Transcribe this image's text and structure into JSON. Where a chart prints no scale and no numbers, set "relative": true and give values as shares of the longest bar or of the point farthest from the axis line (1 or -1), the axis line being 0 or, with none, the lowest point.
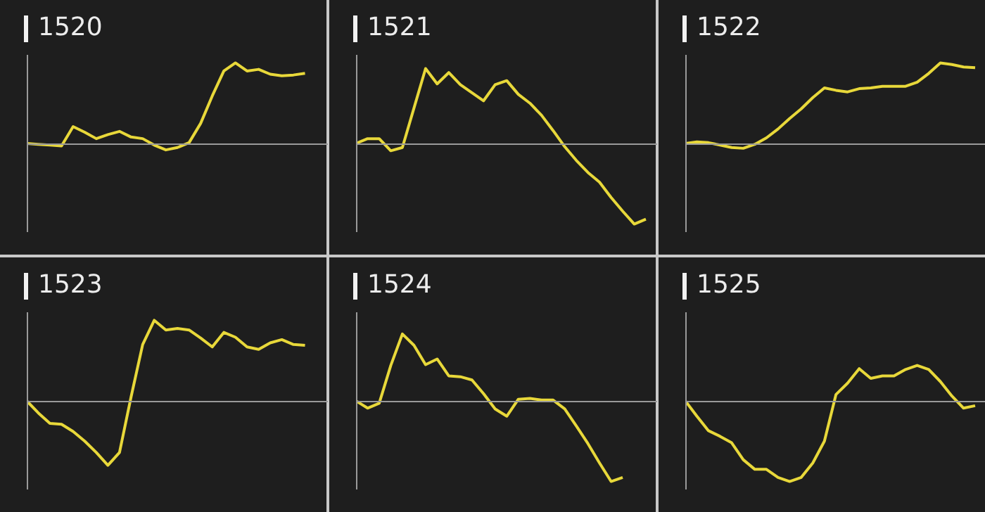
{
  "chart_data": [
    {
      "type": "line",
      "title": "1520",
      "relative": true,
      "categories": [
        null,
        null,
        null,
        null,
        null,
        null,
        null,
        null,
        null,
        null,
        null,
        null,
        null,
        null,
        null,
        null,
        null,
        null,
        null,
        null,
        null,
        null,
        null,
        null,
        null,
        null
      ],
      "series": [
        {
          "color": "#e8d83a",
          "values": [
            0,
            -0.01,
            -0.02,
            -0.03,
            0.21,
            0.14,
            0.06,
            0.11,
            0.15,
            0.08,
            0.06,
            -0.02,
            -0.08,
            -0.05,
            0.01,
            0.25,
            0.59,
            0.9,
            1,
            0.9,
            0.92,
            0.86,
            0.84,
            0.85,
            0.87,
            null
          ]
        }
      ]
    },
    {
      "type": "line",
      "title": "1521",
      "relative": true,
      "categories": [
        null,
        null,
        null,
        null,
        null,
        null,
        null,
        null,
        null,
        null,
        null,
        null,
        null,
        null,
        null,
        null,
        null,
        null,
        null,
        null,
        null,
        null,
        null,
        null,
        null,
        null
      ],
      "series": [
        {
          "color": "#e8d83a",
          "values": [
            0,
            0.06,
            0.06,
            -0.09,
            -0.05,
            0.44,
            0.93,
            0.74,
            0.88,
            0.73,
            0.63,
            0.53,
            0.73,
            0.78,
            0.61,
            0.5,
            0.35,
            0.16,
            -0.04,
            -0.21,
            -0.36,
            -0.48,
            -0.67,
            -0.84,
            -1,
            -0.94
          ]
        }
      ]
    },
    {
      "type": "line",
      "title": "1522",
      "relative": true,
      "categories": [
        null,
        null,
        null,
        null,
        null,
        null,
        null,
        null,
        null,
        null,
        null,
        null,
        null,
        null,
        null,
        null,
        null,
        null,
        null,
        null,
        null,
        null,
        null,
        null,
        null,
        null
      ],
      "series": [
        {
          "color": "#e8d83a",
          "values": [
            0,
            0.02,
            0.01,
            -0.02,
            -0.05,
            -0.06,
            -0.01,
            0.07,
            0.18,
            0.31,
            0.43,
            0.57,
            0.69,
            0.66,
            0.64,
            0.68,
            0.69,
            0.71,
            0.71,
            0.71,
            0.76,
            0.87,
            1,
            0.98,
            0.95,
            0.94
          ]
        }
      ]
    },
    {
      "type": "line",
      "title": "1523",
      "relative": true,
      "categories": [
        null,
        null,
        null,
        null,
        null,
        null,
        null,
        null,
        null,
        null,
        null,
        null,
        null,
        null,
        null,
        null,
        null,
        null,
        null,
        null,
        null,
        null,
        null,
        null,
        null,
        null
      ],
      "series": [
        {
          "color": "#e8d83a",
          "values": [
            0,
            -0.15,
            -0.28,
            -0.29,
            -0.38,
            -0.5,
            -0.64,
            -0.8,
            -0.64,
            0.05,
            0.7,
            1,
            0.88,
            0.9,
            0.88,
            0.78,
            0.67,
            0.85,
            0.79,
            0.67,
            0.64,
            0.72,
            0.76,
            0.7,
            0.69,
            null
          ]
        }
      ]
    },
    {
      "type": "line",
      "title": "1524",
      "relative": true,
      "categories": [
        null,
        null,
        null,
        null,
        null,
        null,
        null,
        null,
        null,
        null,
        null,
        null,
        null,
        null,
        null,
        null,
        null,
        null,
        null,
        null,
        null,
        null,
        null,
        null,
        null,
        null
      ],
      "series": [
        {
          "color": "#e8d83a",
          "values": [
            0,
            -0.09,
            -0.03,
            0.44,
            0.83,
            0.69,
            0.45,
            0.52,
            0.31,
            0.3,
            0.26,
            0.09,
            -0.1,
            -0.19,
            0.02,
            0.03,
            0.01,
            0.01,
            -0.1,
            -0.31,
            -0.53,
            -0.77,
            -1,
            -0.95,
            null,
            null
          ]
        }
      ]
    },
    {
      "type": "line",
      "title": "1525",
      "relative": true,
      "categories": [
        null,
        null,
        null,
        null,
        null,
        null,
        null,
        null,
        null,
        null,
        null,
        null,
        null,
        null,
        null,
        null,
        null,
        null,
        null,
        null,
        null,
        null,
        null,
        null,
        null,
        null
      ],
      "series": [
        {
          "color": "#e8d83a",
          "values": [
            0,
            -0.19,
            -0.37,
            -0.44,
            -0.52,
            -0.73,
            -0.85,
            -0.85,
            -0.95,
            -1,
            -0.95,
            -0.77,
            -0.5,
            0.08,
            0.22,
            0.4,
            0.28,
            0.31,
            0.31,
            0.39,
            0.44,
            0.39,
            0.24,
            0.06,
            -0.09,
            -0.06
          ]
        }
      ]
    }
  ]
}
